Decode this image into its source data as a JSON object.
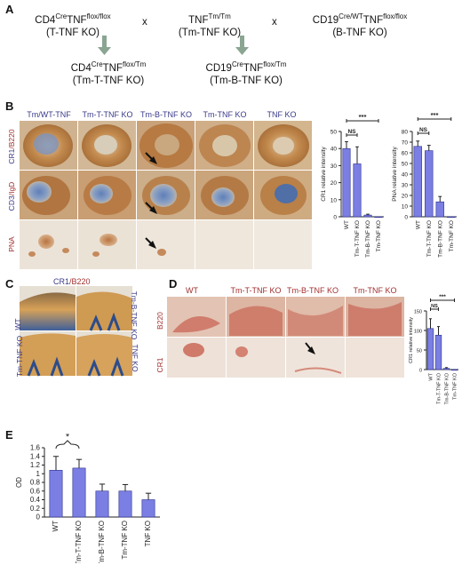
{
  "panelA": {
    "label": "A",
    "top_row": [
      {
        "pre": "CD4",
        "sup1": "Cre",
        "mid": "TNF",
        "sup2": "flox/flox",
        "sub": "(T-TNF KO)"
      },
      {
        "pre": "",
        "sup1": "",
        "mid": "TNF",
        "sup2": "Tm/Tm",
        "sub": "(Tm-TNF KO)"
      },
      {
        "pre": "CD19",
        "sup1": "Cre/WT",
        "mid": "TNF",
        "sup2": "flox/flox",
        "sub": "(B-TNF KO)"
      }
    ],
    "cross": "x",
    "bottom_row": [
      {
        "pre": "CD4",
        "sup1": "Cre",
        "mid": "TNF",
        "sup2": "flox/Tm",
        "sub": "(Tm-T-TNF KO)"
      },
      {
        "pre": "CD19",
        "sup1": "Cre",
        "mid": "TNF",
        "sup2": "flox/Tm",
        "sub": "(Tm-B-TNF KO)"
      }
    ]
  },
  "panelB": {
    "label": "B",
    "columns": [
      "Tm/WT-TNF",
      "Tm-T-TNF KO",
      "Tm-B-TNF KO",
      "Tm-TNF KO",
      "TNF KO"
    ],
    "rows": [
      {
        "a": "CR1",
        "sep": "/",
        "b": "B220"
      },
      {
        "a": "CD3",
        "sep": "/",
        "b": "IgD"
      },
      {
        "a": "",
        "sep": "",
        "b": "PNA"
      }
    ]
  },
  "panelC": {
    "label": "C",
    "title_a": "CR1",
    "title_b": "/B220",
    "labels": [
      "WT",
      "Tm-B-TNF KO",
      "Tm-TNF KO",
      "TNF KO"
    ]
  },
  "panelD": {
    "label": "D",
    "columns": [
      "WT",
      "Tm-T-TNF KO",
      "Tm-B-TNF KO",
      "Tm-TNF KO"
    ],
    "rows": [
      "B220",
      "CR1"
    ]
  },
  "colors": {
    "bar": "#7b7fe3",
    "stain_brown": "#b37437",
    "stain_blue": "#5a78a8",
    "stain_red": "#c7564d",
    "label_blue": "#3a3a8a",
    "label_red": "#a23030"
  },
  "chart_data": [
    {
      "type": "bar",
      "id": "B-CR1",
      "categories": [
        "WT",
        "Tm-T-TNF KO",
        "Tm-B-TNF KO",
        "Tm-TNF KO"
      ],
      "values": [
        40,
        31,
        1,
        0
      ],
      "errors": [
        4,
        10,
        0.5,
        0
      ],
      "ylabel": "CR1 relative intensity",
      "ylim": [
        0,
        50
      ],
      "yticks": [
        0,
        10,
        20,
        30,
        40,
        50
      ],
      "annotations": [
        {
          "text": "NS",
          "from": 0,
          "to": 1
        },
        {
          "text": "***",
          "from": 0,
          "to": 3
        }
      ]
    },
    {
      "type": "bar",
      "id": "B-PNA",
      "categories": [
        "WT",
        "Tm-T-TNF KO",
        "Tm-B-TNF KO",
        "Tm-TNF KO"
      ],
      "values": [
        66,
        62,
        14,
        0
      ],
      "errors": [
        5,
        5,
        5,
        0
      ],
      "ylabel": "PNA relative intensity",
      "ylim": [
        0,
        80
      ],
      "yticks": [
        0,
        10,
        20,
        30,
        40,
        50,
        60,
        70,
        80
      ],
      "annotations": [
        {
          "text": "NS",
          "from": 0,
          "to": 1
        },
        {
          "text": "***",
          "from": 0,
          "to": 3
        }
      ]
    },
    {
      "type": "bar",
      "id": "D-CR1",
      "categories": [
        "WT",
        "Tm-T-TNF KO",
        "Tm-B-TNF KO",
        "Tm-TNF KO"
      ],
      "values": [
        105,
        88,
        3,
        0
      ],
      "errors": [
        25,
        22,
        2,
        0
      ],
      "ylabel": "CR1 relative intensity",
      "ylim": [
        0,
        150
      ],
      "yticks": [
        0,
        50,
        100,
        150
      ],
      "annotations": [
        {
          "text": "NS",
          "from": 0,
          "to": 1
        },
        {
          "text": "***",
          "from": 0,
          "to": 3
        }
      ]
    },
    {
      "type": "bar",
      "id": "E",
      "label": "E",
      "categories": [
        "WT",
        "Tm-T-TNF KO",
        "Tm-B-TNF KO",
        "Tm-TNF KO",
        "TNF KO"
      ],
      "values": [
        1.08,
        1.13,
        0.6,
        0.6,
        0.4
      ],
      "errors": [
        0.32,
        0.2,
        0.16,
        0.15,
        0.15
      ],
      "ylabel": "OD",
      "ylim": [
        0,
        1.6
      ],
      "yticks": [
        0,
        0.2,
        0.4,
        0.6,
        0.8,
        1,
        1.2,
        1.4,
        1.6
      ],
      "annotations": [
        {
          "text": "*",
          "from": 0,
          "to": 1
        }
      ]
    }
  ]
}
